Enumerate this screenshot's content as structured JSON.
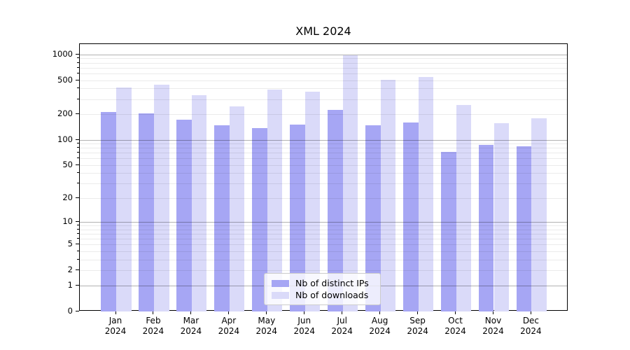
{
  "chart_data": {
    "type": "bar",
    "title": "XML 2024",
    "categories": [
      "Jan",
      "Feb",
      "Mar",
      "Apr",
      "May",
      "Jun",
      "Jul",
      "Aug",
      "Sep",
      "Oct",
      "Nov",
      "Dec"
    ],
    "x_tick_year": "2024",
    "series": [
      {
        "name": "Nb of distinct IPs",
        "color": "#a6a6f4",
        "values": [
          212,
          205,
          175,
          150,
          137,
          152,
          228,
          150,
          160,
          73,
          87,
          85
        ]
      },
      {
        "name": "Nb of downloads",
        "color": "#dadaf9",
        "values": [
          415,
          445,
          338,
          250,
          395,
          370,
          990,
          510,
          550,
          260,
          157,
          180
        ]
      }
    ],
    "y_ticks": [
      0,
      1,
      2,
      5,
      10,
      20,
      50,
      100,
      200,
      500,
      1000
    ],
    "y_scale": "log1p",
    "ylim": [
      0,
      1310
    ],
    "grid": true,
    "legend_position": "lower-center-inside"
  }
}
